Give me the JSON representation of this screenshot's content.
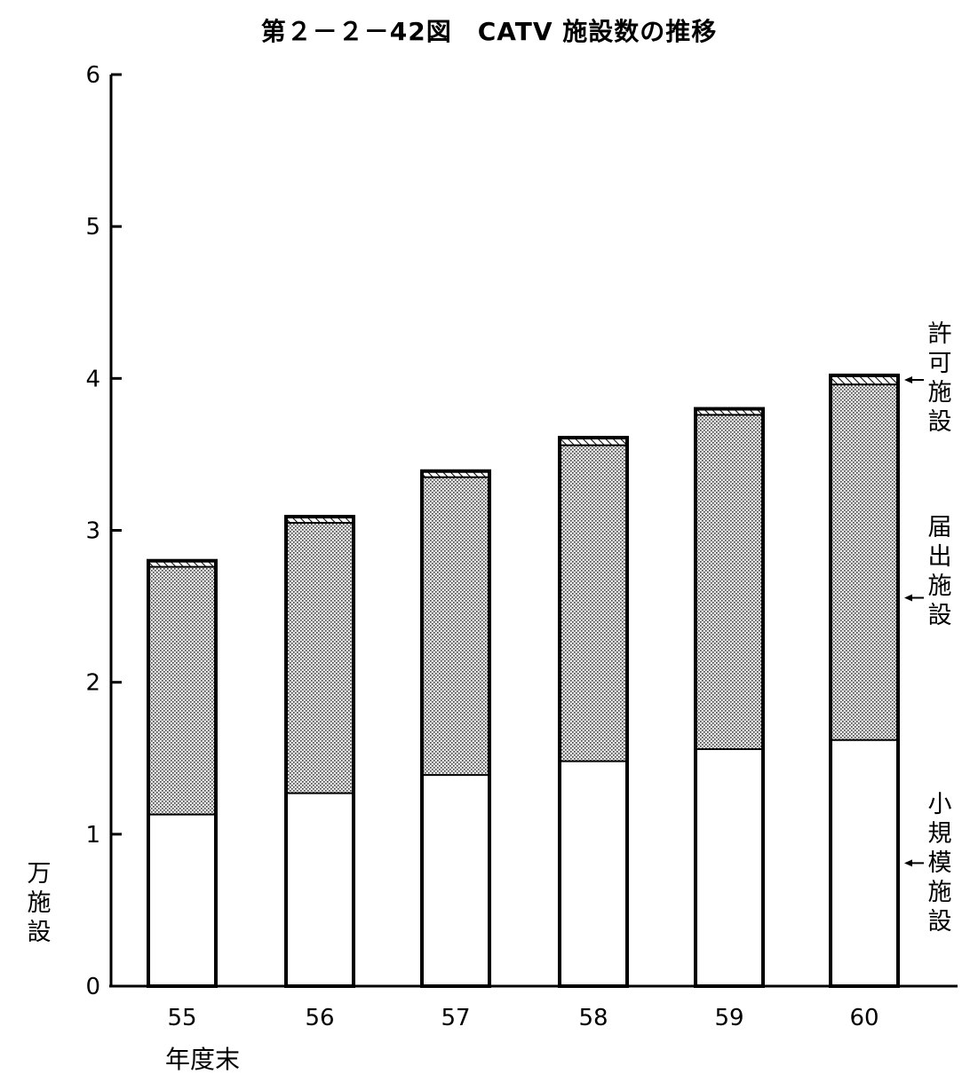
{
  "title": "第２－２－42図　CATV 施設数の推移",
  "y_axis": {
    "unit_label": "万施設",
    "ticks": [
      "0",
      "1",
      "2",
      "3",
      "4",
      "5",
      "6"
    ]
  },
  "x_axis": {
    "unit_label": "年度末"
  },
  "legend": {
    "kyoka": "許可施設",
    "todokede": "届出施設",
    "shokibo": "小規模施設"
  },
  "chart_data": {
    "type": "bar",
    "stacked": true,
    "title": "第２－２－42図　CATV 施設数の推移",
    "xlabel": "年度末",
    "ylabel": "万施設",
    "ylim": [
      0,
      6
    ],
    "yticks": [
      0,
      1,
      2,
      3,
      4,
      5,
      6
    ],
    "categories": [
      "55",
      "56",
      "57",
      "58",
      "59",
      "60"
    ],
    "series": [
      {
        "name": "小規模施設",
        "values": [
          1.13,
          1.27,
          1.39,
          1.48,
          1.56,
          1.62
        ],
        "color": "#ffffff"
      },
      {
        "name": "届出施設",
        "values": [
          1.63,
          1.78,
          1.96,
          2.08,
          2.2,
          2.34
        ],
        "color": "#c8c8c8"
      },
      {
        "name": "許可施設",
        "values": [
          0.04,
          0.04,
          0.04,
          0.05,
          0.04,
          0.06
        ],
        "color": "#ffffff"
      }
    ]
  }
}
